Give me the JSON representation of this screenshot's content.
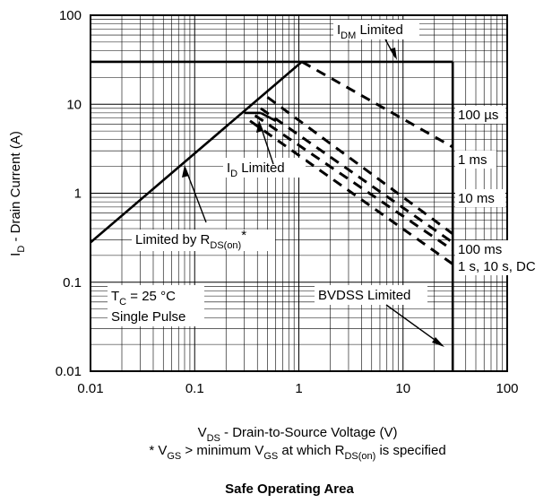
{
  "chart_data": {
    "type": "line",
    "title": "Safe Operating Area",
    "xlabel": {
      "main": "V",
      "sub": "DS",
      "rest": " - Drain-to-Source Voltage (V)"
    },
    "ylabel": {
      "main": "I",
      "sub": "D",
      "rest": " - Drain Current (A)"
    },
    "footnote": {
      "p1": "* V",
      "s1": "GS",
      "p2": " > minimum V",
      "s2": "GS",
      "p3": " at which R",
      "s3": "DS(on)",
      "p4": " is specified"
    },
    "x_scale": "log",
    "y_scale": "log",
    "xlim": [
      0.01,
      100
    ],
    "ylim": [
      0.01,
      100
    ],
    "grid": true,
    "x_ticks": [
      {
        "value": 0.01,
        "label": "0.01"
      },
      {
        "value": 0.1,
        "label": "0.1"
      },
      {
        "value": 1,
        "label": "1"
      },
      {
        "value": 10,
        "label": "10"
      },
      {
        "value": 100,
        "label": "100"
      }
    ],
    "y_ticks": [
      {
        "value": 0.01,
        "label": "0.01"
      },
      {
        "value": 0.1,
        "label": "0.1"
      },
      {
        "value": 1,
        "label": "1"
      },
      {
        "value": 10,
        "label": "10"
      },
      {
        "value": 100,
        "label": "100"
      }
    ],
    "series": [
      {
        "id": "rdson-limit",
        "style": "solid",
        "x": [
          0.01,
          1.07
        ],
        "y": [
          0.28,
          30
        ]
      },
      {
        "id": "idm-limit",
        "style": "solid",
        "x": [
          0.01,
          30
        ],
        "y": [
          30,
          30
        ]
      },
      {
        "id": "bvdss-limit",
        "style": "solid",
        "x": [
          30,
          30
        ],
        "y": [
          30,
          0.01
        ]
      },
      {
        "id": "dc-step-a",
        "style": "solid",
        "x": [
          0.3,
          0.43
        ],
        "y": [
          8,
          8
        ]
      },
      {
        "id": "dc-step-b",
        "style": "solid",
        "x": [
          0.43,
          0.6
        ],
        "y": [
          8,
          6.5
        ]
      },
      {
        "id": "curve-100us",
        "style": "dashed",
        "x": [
          1.07,
          30
        ],
        "y": [
          30,
          3.3
        ]
      },
      {
        "id": "curve-1ms",
        "style": "dashed",
        "x": [
          0.5,
          30
        ],
        "y": [
          12,
          0.35
        ]
      },
      {
        "id": "curve-10ms",
        "style": "dashed",
        "x": [
          0.43,
          30
        ],
        "y": [
          9,
          0.28
        ]
      },
      {
        "id": "curve-100ms",
        "style": "dashed",
        "x": [
          0.38,
          30
        ],
        "y": [
          7.5,
          0.23
        ]
      },
      {
        "id": "curve-1s-dc",
        "style": "dashed",
        "x": [
          0.34,
          30
        ],
        "y": [
          6.5,
          0.16
        ]
      }
    ],
    "annotations": {
      "idm": {
        "main": "I",
        "sub": "DM",
        "rest": " Limited"
      },
      "t100us": {
        "text": "100 µs"
      },
      "t1ms": {
        "text": "1 ms"
      },
      "t10ms": {
        "text": "10 ms"
      },
      "t100ms": {
        "text": "100 ms"
      },
      "t1s": {
        "text": "1 s, 10 s, DC"
      },
      "id_limited": {
        "main": "I",
        "sub": "D",
        "rest": " Limited"
      },
      "rdson": {
        "main": "Limited by R",
        "sub": "DS(on)",
        "rest": "*"
      },
      "tc": {
        "main": "T",
        "sub": "C",
        "rest": " = 25 °C"
      },
      "single": {
        "text": "Single Pulse"
      },
      "bvdss": {
        "text": "BVDSS Limited"
      }
    }
  }
}
